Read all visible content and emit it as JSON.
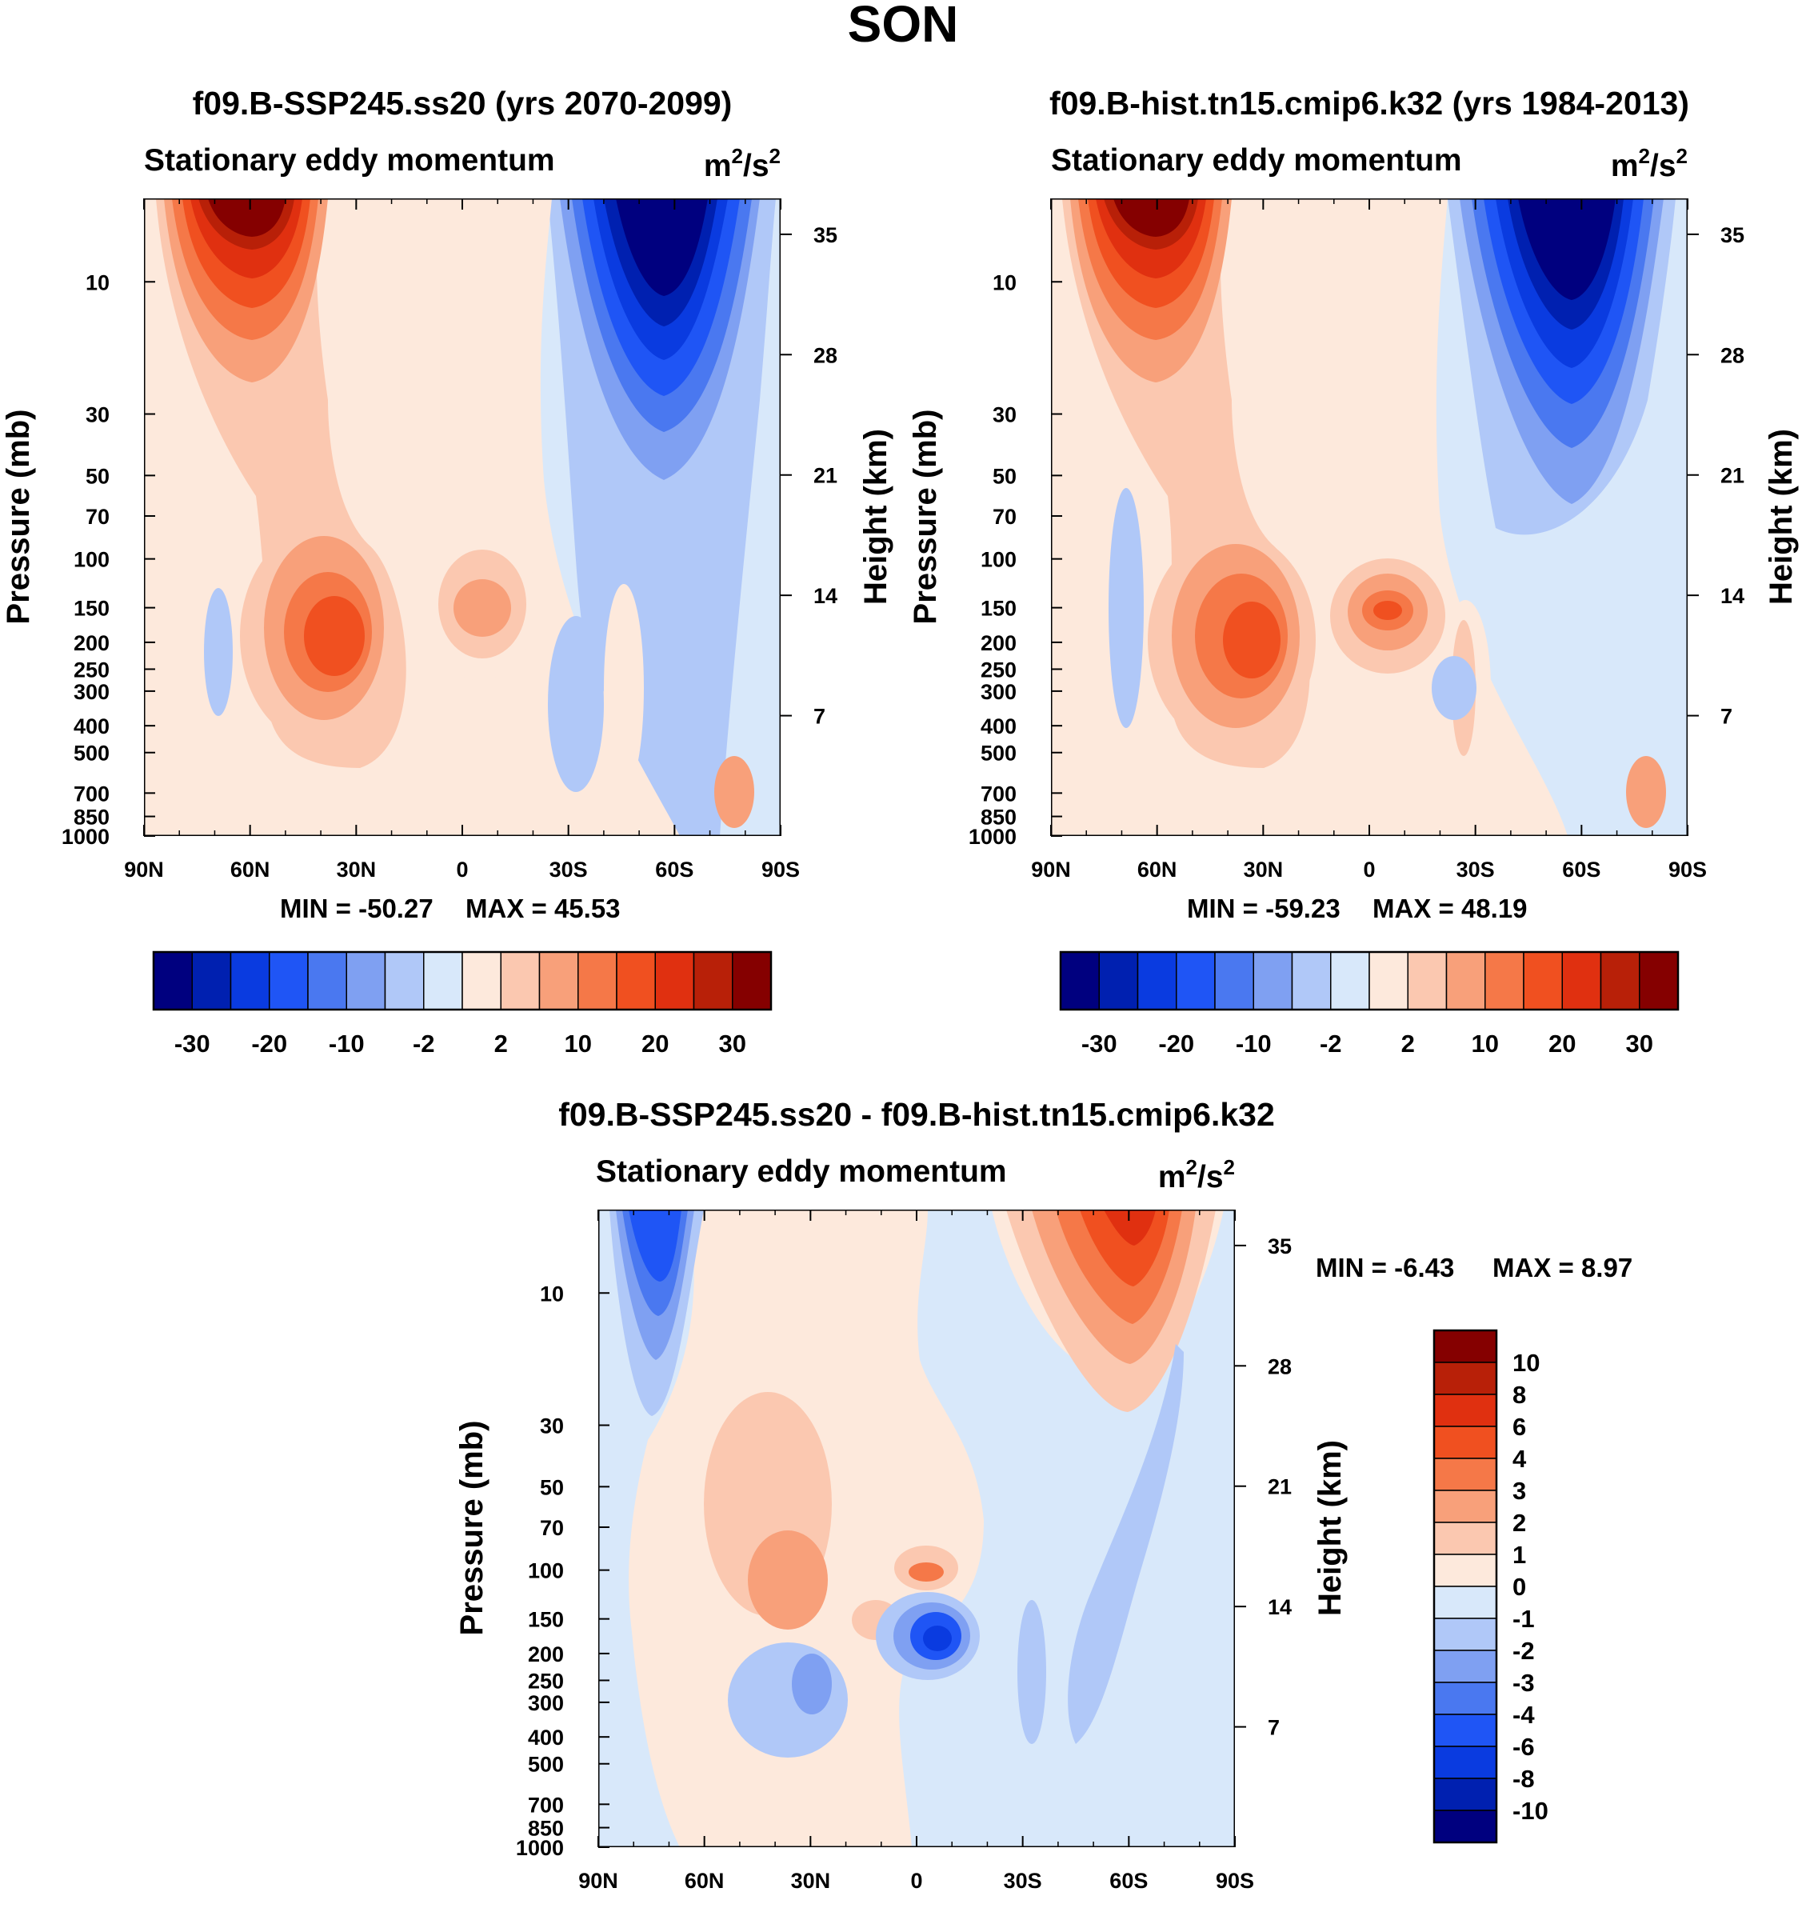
{
  "title": "SON",
  "colors": {
    "scale": [
      "#00007f",
      "#0020b0",
      "#0a3be0",
      "#1f55f5",
      "#4a78f0",
      "#7fa0f2",
      "#b0c8f8",
      "#d8e8fa",
      "#fde9dc",
      "#fbc8b0",
      "#f8a07a",
      "#f57848",
      "#f05020",
      "#e03010",
      "#b82008",
      "#850000"
    ]
  },
  "chart_data": [
    {
      "type": "contour",
      "title": "f09.B-SSP245.ss20 (yrs 2070-2099)",
      "left_label": "Stationary eddy momentum",
      "right_label": "m²/s²",
      "unit_base": "m",
      "unit_exp1": "2",
      "unit_mid": "/s",
      "unit_exp2": "2",
      "xlabel": "",
      "ylabel": "Pressure (mb)",
      "y2label": "Height (km)",
      "x_ticks": [
        "90N",
        "60N",
        "30N",
        "0",
        "30S",
        "60S",
        "90S"
      ],
      "y_ticks": [
        "10",
        "30",
        "50",
        "70",
        "100",
        "150",
        "200",
        "250",
        "300",
        "400",
        "500",
        "700",
        "850",
        "1000"
      ],
      "y2_ticks": [
        "35",
        "28",
        "21",
        "14",
        "7"
      ],
      "min_label": "MIN = -50.27",
      "max_label": "MAX =  45.53",
      "min": -50.27,
      "max": 45.53,
      "colorbar_labels": [
        "-30",
        "-20",
        "-10",
        "-2",
        "2",
        "10",
        "20",
        "30"
      ]
    },
    {
      "type": "contour",
      "title": "f09.B-hist.tn15.cmip6.k32 (yrs 1984-2013)",
      "left_label": "Stationary eddy momentum",
      "right_label": "m²/s²",
      "unit_base": "m",
      "unit_exp1": "2",
      "unit_mid": "/s",
      "unit_exp2": "2",
      "xlabel": "",
      "ylabel": "Pressure (mb)",
      "y2label": "Height (km)",
      "x_ticks": [
        "90N",
        "60N",
        "30N",
        "0",
        "30S",
        "60S",
        "90S"
      ],
      "y_ticks": [
        "10",
        "30",
        "50",
        "70",
        "100",
        "150",
        "200",
        "250",
        "300",
        "400",
        "500",
        "700",
        "850",
        "1000"
      ],
      "y2_ticks": [
        "35",
        "28",
        "21",
        "14",
        "7"
      ],
      "min_label": "MIN = -59.23",
      "max_label": "MAX =  48.19",
      "min": -59.23,
      "max": 48.19,
      "colorbar_labels": [
        "-30",
        "-20",
        "-10",
        "-2",
        "2",
        "10",
        "20",
        "30"
      ]
    },
    {
      "type": "contour",
      "title": "f09.B-SSP245.ss20 - f09.B-hist.tn15.cmip6.k32",
      "left_label": "Stationary eddy momentum",
      "right_label": "m²/s²",
      "unit_base": "m",
      "unit_exp1": "2",
      "unit_mid": "/s",
      "unit_exp2": "2",
      "xlabel": "",
      "ylabel": "Pressure (mb)",
      "y2label": "Height (km)",
      "x_ticks": [
        "90N",
        "60N",
        "30N",
        "0",
        "30S",
        "60S",
        "90S"
      ],
      "y_ticks": [
        "10",
        "30",
        "50",
        "70",
        "100",
        "150",
        "200",
        "250",
        "300",
        "400",
        "500",
        "700",
        "850",
        "1000"
      ],
      "y2_ticks": [
        "35",
        "28",
        "21",
        "14",
        "7"
      ],
      "min_label": "MIN =  -6.43",
      "max_label": "MAX =   8.97",
      "min": -6.43,
      "max": 8.97,
      "colorbar_labels": [
        "10",
        "8",
        "6",
        "4",
        "3",
        "2",
        "1",
        "0",
        "-1",
        "-2",
        "-3",
        "-4",
        "-6",
        "-8",
        "-10"
      ]
    }
  ]
}
